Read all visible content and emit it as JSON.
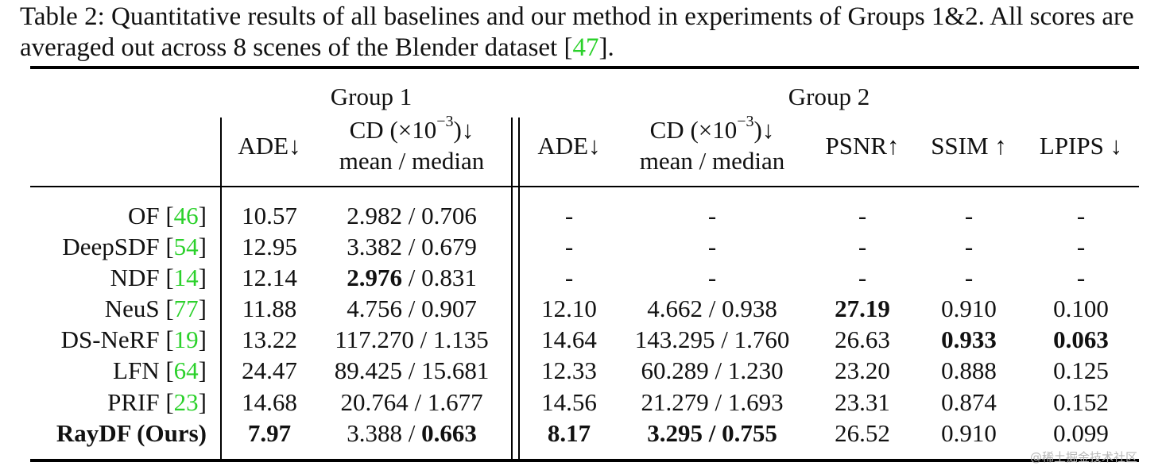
{
  "caption": {
    "prefix": "Table 2: Quantitative results of all baselines and our method in experiments of Groups 1&2. All scores are averaged out across 8 scenes of the Blender dataset [",
    "ref": "47",
    "suffix": "]."
  },
  "groups": {
    "g1": "Group 1",
    "g2": "Group 2"
  },
  "headers": {
    "ade": "ADE↓",
    "cd_pre": "CD (×10",
    "cd_exp": "−3",
    "cd_post": ")↓",
    "mean_median": "mean / median",
    "psnr": "PSNR↑",
    "ssim": "SSIM ↑",
    "lpips": "LPIPS ↓"
  },
  "rows": [
    {
      "name": "OF [",
      "ref": "46",
      "close": "]",
      "ade1": "10.57",
      "cd1a": "2.982",
      "cd1b": "0.706",
      "ade2": "-",
      "cd2": "-",
      "psnr": "-",
      "ssim": "-",
      "lpips": "-"
    },
    {
      "name": "DeepSDF [",
      "ref": "54",
      "close": "]",
      "ade1": "12.95",
      "cd1a": "3.382",
      "cd1b": "0.679",
      "ade2": "-",
      "cd2": "-",
      "psnr": "-",
      "ssim": "-",
      "lpips": "-"
    },
    {
      "name": "NDF [",
      "ref": "14",
      "close": "]",
      "ade1": "12.14",
      "cd1a": "2.976",
      "cd1b": "0.831",
      "ade2": "-",
      "cd2": "-",
      "psnr": "-",
      "ssim": "-",
      "lpips": "-"
    },
    {
      "name": "NeuS [",
      "ref": "77",
      "close": "]",
      "ade1": "11.88",
      "cd1a": "4.756",
      "cd1b": "0.907",
      "ade2": "12.10",
      "cd2a": "4.662",
      "cd2b": "0.938",
      "psnr": "27.19",
      "ssim": "0.910",
      "lpips": "0.100"
    },
    {
      "name": "DS-NeRF [",
      "ref": "19",
      "close": "]",
      "ade1": "13.22",
      "cd1a": "117.270",
      "cd1b": "1.135",
      "ade2": "14.64",
      "cd2a": "143.295",
      "cd2b": "1.760",
      "psnr": "26.63",
      "ssim": "0.933",
      "lpips": "0.063"
    },
    {
      "name": "LFN [",
      "ref": "64",
      "close": "]",
      "ade1": "24.47",
      "cd1a": "89.425",
      "cd1b": "15.681",
      "ade2": "12.33",
      "cd2a": "60.289",
      "cd2b": "1.230",
      "psnr": "23.20",
      "ssim": "0.888",
      "lpips": "0.125"
    },
    {
      "name": "PRIF [",
      "ref": "23",
      "close": "]",
      "ade1": "14.68",
      "cd1a": "20.764",
      "cd1b": "1.677",
      "ade2": "14.56",
      "cd2a": "21.279",
      "cd2b": "1.693",
      "psnr": "23.31",
      "ssim": "0.874",
      "lpips": "0.152"
    },
    {
      "name": "RayDF (Ours)",
      "ade1": "7.97",
      "cd1a": "3.388",
      "cd1b": "0.663",
      "ade2": "8.17",
      "cd2a": "3.295",
      "cd2b": "0.755",
      "psnr": "26.52",
      "ssim": "0.910",
      "lpips": "0.099"
    }
  ],
  "watermark": "@稀土掘金技术社区"
}
